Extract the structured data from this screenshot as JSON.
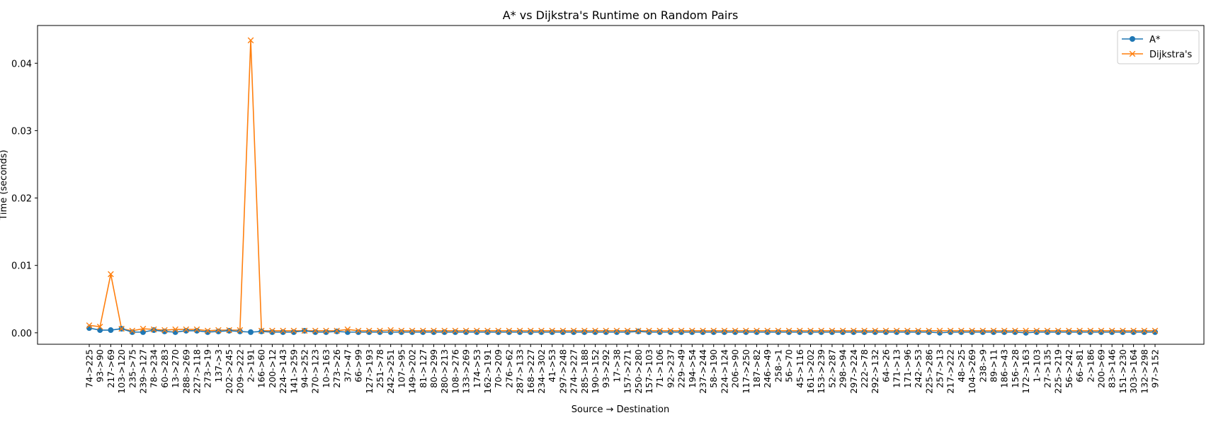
{
  "chart_data": {
    "type": "line",
    "title": "A* vs Dijkstra's Runtime on Random Pairs",
    "xlabel": "Source → Destination",
    "ylabel": "Time (seconds)",
    "ylim": [
      -0.0017,
      0.0456
    ],
    "yticks": [
      0.0,
      0.01,
      0.02,
      0.03,
      0.04
    ],
    "ytick_labels": [
      "0.00",
      "0.01",
      "0.02",
      "0.03",
      "0.04"
    ],
    "grid": false,
    "legend": "top-right",
    "categories": [
      "74->225",
      "93->90",
      "217->69",
      "103->120",
      "235->75",
      "239->127",
      "78->234",
      "60->283",
      "13->270",
      "288->269",
      "227->118",
      "273->19",
      "137->3",
      "202->245",
      "209->222",
      "2->191",
      "166->60",
      "200->12",
      "224->143",
      "141->259",
      "94->252",
      "270->123",
      "10->163",
      "273->26",
      "37->47",
      "66->99",
      "127->193",
      "251->78",
      "242->251",
      "107->95",
      "149->202",
      "81->127",
      "80->299",
      "280->213",
      "108->276",
      "133->269",
      "174->53",
      "162->191",
      "70->209",
      "276->62",
      "287->133",
      "168->227",
      "234->302",
      "41->53",
      "297->248",
      "274->227",
      "285->188",
      "190->152",
      "93->292",
      "17->38",
      "157->271",
      "250->280",
      "157->103",
      "71->106",
      "92->237",
      "229->49",
      "194->54",
      "237->244",
      "58->190",
      "224->124",
      "206->90",
      "117->250",
      "187->82",
      "246->49",
      "258->1",
      "56->70",
      "45->116",
      "161->202",
      "153->239",
      "52->287",
      "298->94",
      "297->224",
      "222->78",
      "292->132",
      "64->26",
      "171->13",
      "171->96",
      "242->53",
      "225->286",
      "257->13",
      "217->222",
      "48->25",
      "104->269",
      "238->9",
      "89->11",
      "186->43",
      "156->28",
      "172->163",
      "1->103",
      "27->135",
      "225->219",
      "56->242",
      "66->81",
      "2->186",
      "200->69",
      "83->146",
      "151->230",
      "303->164",
      "132->298",
      "97->152"
    ],
    "series": [
      {
        "name": "A*",
        "color": "#1f77b4",
        "marker": "circle",
        "values": [
          0.0007,
          0.0004,
          0.0004,
          0.0006,
          0.0001,
          0.0001,
          0.0004,
          0.0002,
          0.0001,
          0.0003,
          0.0003,
          0.0001,
          0.0002,
          0.0003,
          0.0002,
          0.0001,
          0.0002,
          0.0001,
          0.0001,
          0.0001,
          0.0003,
          0.0001,
          0.0001,
          0.0002,
          0.0001,
          0.0001,
          0.0001,
          0.0001,
          0.0001,
          0.0001,
          0.0001,
          0.0001,
          0.0001,
          0.0001,
          0.0001,
          0.0001,
          0.0001,
          0.0001,
          0.0001,
          0.0001,
          0.0001,
          0.0001,
          0.0001,
          0.0001,
          0.0001,
          0.0001,
          0.0001,
          0.0001,
          0.0001,
          0.0001,
          0.0001,
          0.0002,
          0.0001,
          0.0001,
          0.0001,
          0.0001,
          0.0001,
          0.0001,
          0.0001,
          0.0001,
          0.0001,
          0.0001,
          0.0001,
          0.0001,
          0.0001,
          0.0001,
          0.0001,
          0.0001,
          0.0001,
          0.0001,
          0.0001,
          0.0001,
          0.0001,
          0.0001,
          0.0001,
          0.0001,
          0.0001,
          0.0001,
          0.0001,
          0.0,
          0.0001,
          0.0001,
          0.0001,
          0.0001,
          0.0001,
          0.0001,
          0.0001,
          0.0,
          0.0001,
          0.0001,
          0.0001,
          0.0001,
          0.0001,
          0.0001,
          0.0001,
          0.0001,
          0.0001,
          0.0001,
          0.0001,
          0.0001
        ]
      },
      {
        "name": "Dijkstra's",
        "color": "#ff7f0e",
        "marker": "x",
        "values": [
          0.0011,
          0.0009,
          0.0087,
          0.0006,
          0.0003,
          0.0006,
          0.0005,
          0.0004,
          0.0005,
          0.0005,
          0.0005,
          0.0003,
          0.0004,
          0.0004,
          0.0004,
          0.0434,
          0.0003,
          0.0003,
          0.0003,
          0.0003,
          0.0003,
          0.0003,
          0.0003,
          0.0003,
          0.0005,
          0.0003,
          0.0003,
          0.0003,
          0.0004,
          0.0003,
          0.0003,
          0.0003,
          0.0003,
          0.0003,
          0.0003,
          0.0003,
          0.0003,
          0.0003,
          0.0003,
          0.0003,
          0.0003,
          0.0003,
          0.0003,
          0.0003,
          0.0003,
          0.0003,
          0.0003,
          0.0003,
          0.0003,
          0.0003,
          0.0003,
          0.0003,
          0.0003,
          0.0003,
          0.0003,
          0.0003,
          0.0003,
          0.0003,
          0.0003,
          0.0003,
          0.0003,
          0.0003,
          0.0003,
          0.0003,
          0.0003,
          0.0003,
          0.0003,
          0.0003,
          0.0003,
          0.0003,
          0.0003,
          0.0003,
          0.0003,
          0.0003,
          0.0003,
          0.0003,
          0.0003,
          0.0003,
          0.0003,
          0.0003,
          0.0003,
          0.0003,
          0.0003,
          0.0003,
          0.0003,
          0.0003,
          0.0003,
          0.0003,
          0.0003,
          0.0003,
          0.0003,
          0.0003,
          0.0003,
          0.0003,
          0.0003,
          0.0003,
          0.0003,
          0.0003,
          0.0003,
          0.0003
        ]
      }
    ]
  }
}
